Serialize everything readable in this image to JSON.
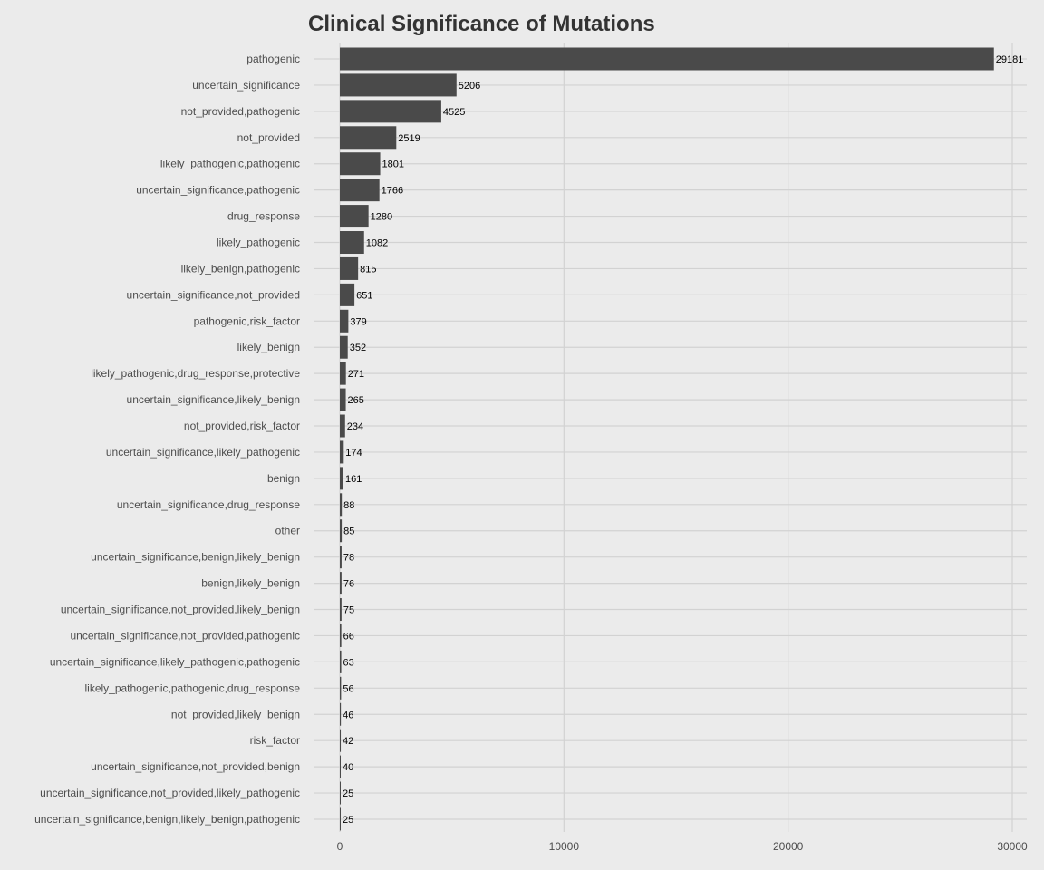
{
  "chart_data": {
    "type": "bar",
    "orientation": "horizontal",
    "title": "Clinical Significance of Mutations",
    "xlabel": "",
    "ylabel": "",
    "categories": [
      "pathogenic",
      "uncertain_significance",
      "not_provided,pathogenic",
      "not_provided",
      "likely_pathogenic,pathogenic",
      "uncertain_significance,pathogenic",
      "drug_response",
      "likely_pathogenic",
      "likely_benign,pathogenic",
      "uncertain_significance,not_provided",
      "pathogenic,risk_factor",
      "likely_benign",
      "likely_pathogenic,drug_response,protective",
      "uncertain_significance,likely_benign",
      "not_provided,risk_factor",
      "uncertain_significance,likely_pathogenic",
      "benign",
      "uncertain_significance,drug_response",
      "other",
      "uncertain_significance,benign,likely_benign",
      "benign,likely_benign",
      "uncertain_significance,not_provided,likely_benign",
      "uncertain_significance,not_provided,pathogenic",
      "uncertain_significance,likely_pathogenic,pathogenic",
      "likely_pathogenic,pathogenic,drug_response",
      "not_provided,likely_benign",
      "risk_factor",
      "uncertain_significance,not_provided,benign",
      "uncertain_significance,not_provided,likely_pathogenic",
      "uncertain_significance,benign,likely_benign,pathogenic"
    ],
    "values": [
      29181,
      5206,
      4525,
      2519,
      1801,
      1766,
      1280,
      1082,
      815,
      651,
      379,
      352,
      271,
      265,
      234,
      174,
      161,
      88,
      85,
      78,
      76,
      75,
      66,
      63,
      56,
      46,
      42,
      40,
      25,
      25
    ],
    "xlim": [
      0,
      30000
    ],
    "x_ticks": [
      0,
      10000,
      20000,
      30000
    ],
    "grid": true,
    "legend": "none",
    "colors": {
      "bar": "#4a4a4a",
      "panel_background": "#ebebeb",
      "gridline": "#d2d2d2",
      "text": "#333333"
    }
  }
}
